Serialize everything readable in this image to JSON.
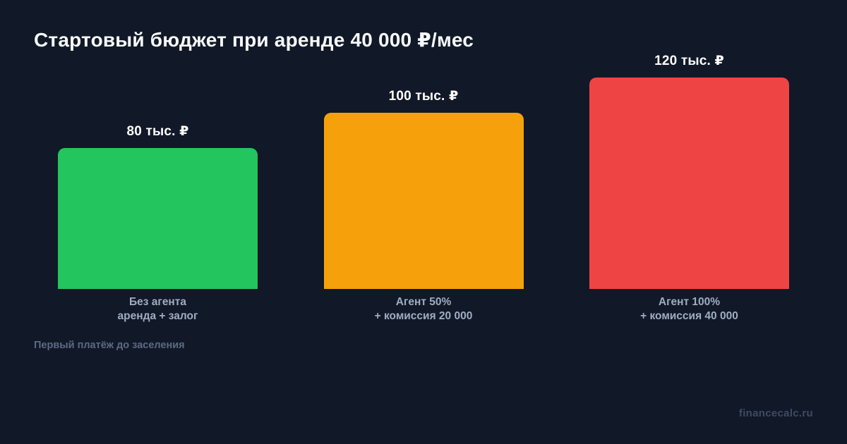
{
  "title": "Стартовый бюджет при аренде 40 000 ₽/мес",
  "footnote": "Первый платёж до заселения",
  "watermark": "financecalc.ru",
  "colors": {
    "background": "#111827",
    "title_text": "#f8fafc",
    "value_text": "#ffffff",
    "category_text": "#9fadc2",
    "footnote_text": "#5c6b82",
    "watermark_text": "#3d4b63"
  },
  "chart_data": {
    "type": "bar",
    "title": "Стартовый бюджет при аренде 40 000 ₽/мес",
    "categories": [
      [
        "Без агента",
        "аренда + залог"
      ],
      [
        "Агент 50%",
        "+ комиссия 20 000"
      ],
      [
        "Агент 100%",
        "+ комиссия 40 000"
      ]
    ],
    "values": [
      80,
      100,
      120
    ],
    "unit": "тыс. ₽",
    "value_labels": [
      "80 тыс. ₽",
      "100 тыс. ₽",
      "120 тыс. ₽"
    ],
    "bar_colors": [
      "#22c55e",
      "#f6a10b",
      "#ef4444"
    ],
    "xlabel": "",
    "ylabel": "",
    "ylim": [
      0,
      120
    ],
    "grid": false,
    "legend": false,
    "annotation": "Первый платёж до заселения"
  }
}
